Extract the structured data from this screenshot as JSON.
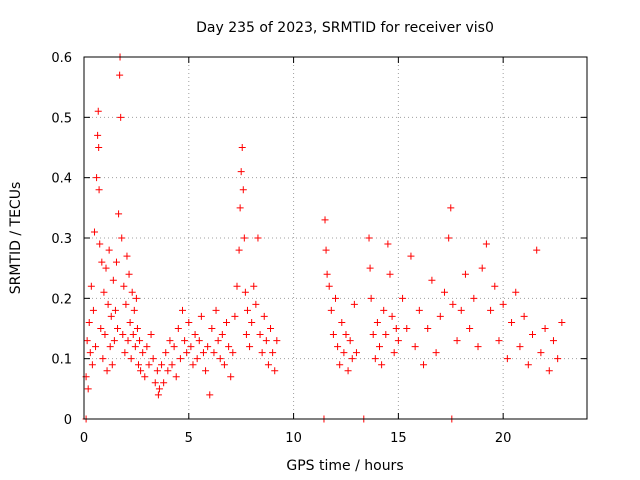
{
  "chart_data": {
    "type": "scatter",
    "title": "Day 235 of 2023, SRMTID for receiver vis0",
    "xlabel": "GPS time / hours",
    "ylabel": "SRMTID / TECUs",
    "xlim": [
      0,
      24
    ],
    "ylim": [
      0,
      0.6
    ],
    "x_ticks": [
      0,
      5,
      10,
      15,
      20
    ],
    "y_ticks": [
      0,
      0.1,
      0.2,
      0.3,
      0.4,
      0.5,
      0.6
    ],
    "x_tick_labels": [
      "0",
      "5",
      "10",
      "15",
      "20"
    ],
    "y_tick_labels": [
      "0",
      "0.1",
      "0.2",
      "0.3",
      "0.4",
      "0.5",
      "0.6"
    ],
    "grid": true,
    "marker": "+",
    "series": [
      {
        "name": "SRMTID",
        "color": "#ff0000",
        "points": [
          [
            0.1,
            0.07
          ],
          [
            0.15,
            0.13
          ],
          [
            0.2,
            0.05
          ],
          [
            0.25,
            0.16
          ],
          [
            0.3,
            0.11
          ],
          [
            0.35,
            0.22
          ],
          [
            0.4,
            0.09
          ],
          [
            0.45,
            0.18
          ],
          [
            0.5,
            0.31
          ],
          [
            0.55,
            0.12
          ],
          [
            0.6,
            0.4
          ],
          [
            0.65,
            0.47
          ],
          [
            0.68,
            0.51
          ],
          [
            0.7,
            0.45
          ],
          [
            0.72,
            0.38
          ],
          [
            0.75,
            0.29
          ],
          [
            0.8,
            0.15
          ],
          [
            0.85,
            0.26
          ],
          [
            0.9,
            0.1
          ],
          [
            0.95,
            0.21
          ],
          [
            1.0,
            0.14
          ],
          [
            1.05,
            0.25
          ],
          [
            1.1,
            0.08
          ],
          [
            1.15,
            0.19
          ],
          [
            1.2,
            0.28
          ],
          [
            1.25,
            0.12
          ],
          [
            1.3,
            0.17
          ],
          [
            1.35,
            0.09
          ],
          [
            1.4,
            0.23
          ],
          [
            1.45,
            0.13
          ],
          [
            1.5,
            0.18
          ],
          [
            1.55,
            0.26
          ],
          [
            1.6,
            0.15
          ],
          [
            1.65,
            0.34
          ],
          [
            1.7,
            0.57
          ],
          [
            1.72,
            0.6
          ],
          [
            1.75,
            0.5
          ],
          [
            1.8,
            0.3
          ],
          [
            1.85,
            0.14
          ],
          [
            1.9,
            0.22
          ],
          [
            1.95,
            0.11
          ],
          [
            2.0,
            0.19
          ],
          [
            2.05,
            0.27
          ],
          [
            2.1,
            0.13
          ],
          [
            2.15,
            0.24
          ],
          [
            2.2,
            0.16
          ],
          [
            2.25,
            0.1
          ],
          [
            2.3,
            0.21
          ],
          [
            2.35,
            0.14
          ],
          [
            2.4,
            0.18
          ],
          [
            2.45,
            0.12
          ],
          [
            2.5,
            0.2
          ],
          [
            2.55,
            0.15
          ],
          [
            2.6,
            0.09
          ],
          [
            2.65,
            0.13
          ],
          [
            2.7,
            0.08
          ],
          [
            2.8,
            0.11
          ],
          [
            2.9,
            0.07
          ],
          [
            3.0,
            0.12
          ],
          [
            3.1,
            0.09
          ],
          [
            3.2,
            0.14
          ],
          [
            3.3,
            0.1
          ],
          [
            3.4,
            0.06
          ],
          [
            3.5,
            0.08
          ],
          [
            3.55,
            0.04
          ],
          [
            3.6,
            0.05
          ],
          [
            3.7,
            0.09
          ],
          [
            3.8,
            0.06
          ],
          [
            3.9,
            0.11
          ],
          [
            4.0,
            0.08
          ],
          [
            4.1,
            0.13
          ],
          [
            4.2,
            0.09
          ],
          [
            4.3,
            0.12
          ],
          [
            4.4,
            0.07
          ],
          [
            4.5,
            0.15
          ],
          [
            4.6,
            0.1
          ],
          [
            4.7,
            0.18
          ],
          [
            4.8,
            0.13
          ],
          [
            4.9,
            0.11
          ],
          [
            5.0,
            0.16
          ],
          [
            5.1,
            0.12
          ],
          [
            5.2,
            0.09
          ],
          [
            5.3,
            0.14
          ],
          [
            5.4,
            0.1
          ],
          [
            5.5,
            0.13
          ],
          [
            5.6,
            0.17
          ],
          [
            5.7,
            0.11
          ],
          [
            5.8,
            0.08
          ],
          [
            5.9,
            0.12
          ],
          [
            6.0,
            0.04
          ],
          [
            6.1,
            0.15
          ],
          [
            6.2,
            0.11
          ],
          [
            6.3,
            0.18
          ],
          [
            6.4,
            0.13
          ],
          [
            6.5,
            0.1
          ],
          [
            6.6,
            0.14
          ],
          [
            6.7,
            0.09
          ],
          [
            6.8,
            0.16
          ],
          [
            6.9,
            0.12
          ],
          [
            7.0,
            0.07
          ],
          [
            7.1,
            0.11
          ],
          [
            7.2,
            0.17
          ],
          [
            7.3,
            0.22
          ],
          [
            7.4,
            0.28
          ],
          [
            7.45,
            0.35
          ],
          [
            7.5,
            0.41
          ],
          [
            7.55,
            0.45
          ],
          [
            7.6,
            0.38
          ],
          [
            7.65,
            0.3
          ],
          [
            7.7,
            0.21
          ],
          [
            7.75,
            0.14
          ],
          [
            7.8,
            0.18
          ],
          [
            7.9,
            0.12
          ],
          [
            8.0,
            0.16
          ],
          [
            8.1,
            0.22
          ],
          [
            8.2,
            0.19
          ],
          [
            8.3,
            0.3
          ],
          [
            8.4,
            0.14
          ],
          [
            8.5,
            0.11
          ],
          [
            8.6,
            0.17
          ],
          [
            8.7,
            0.13
          ],
          [
            8.8,
            0.09
          ],
          [
            8.9,
            0.15
          ],
          [
            9.0,
            0.11
          ],
          [
            9.1,
            0.08
          ],
          [
            9.2,
            0.13
          ],
          [
            11.5,
            0.33
          ],
          [
            11.55,
            0.28
          ],
          [
            11.6,
            0.24
          ],
          [
            11.7,
            0.22
          ],
          [
            11.8,
            0.18
          ],
          [
            11.9,
            0.14
          ],
          [
            12.0,
            0.2
          ],
          [
            12.1,
            0.12
          ],
          [
            12.2,
            0.09
          ],
          [
            12.3,
            0.16
          ],
          [
            12.4,
            0.11
          ],
          [
            12.5,
            0.14
          ],
          [
            12.6,
            0.08
          ],
          [
            12.7,
            0.13
          ],
          [
            12.8,
            0.1
          ],
          [
            12.9,
            0.19
          ],
          [
            13.0,
            0.11
          ],
          [
            13.6,
            0.3
          ],
          [
            13.65,
            0.25
          ],
          [
            13.7,
            0.2
          ],
          [
            13.8,
            0.14
          ],
          [
            13.9,
            0.1
          ],
          [
            14.0,
            0.16
          ],
          [
            14.1,
            0.12
          ],
          [
            14.2,
            0.09
          ],
          [
            14.3,
            0.18
          ],
          [
            14.4,
            0.14
          ],
          [
            14.5,
            0.29
          ],
          [
            14.6,
            0.24
          ],
          [
            14.7,
            0.17
          ],
          [
            14.8,
            0.11
          ],
          [
            14.9,
            0.15
          ],
          [
            15.0,
            0.13
          ],
          [
            15.2,
            0.2
          ],
          [
            15.4,
            0.15
          ],
          [
            15.6,
            0.27
          ],
          [
            15.8,
            0.12
          ],
          [
            16.0,
            0.18
          ],
          [
            16.2,
            0.09
          ],
          [
            16.4,
            0.15
          ],
          [
            16.6,
            0.23
          ],
          [
            16.8,
            0.11
          ],
          [
            17.0,
            0.17
          ],
          [
            17.2,
            0.21
          ],
          [
            17.4,
            0.3
          ],
          [
            17.5,
            0.35
          ],
          [
            17.6,
            0.19
          ],
          [
            17.8,
            0.13
          ],
          [
            18.0,
            0.18
          ],
          [
            18.2,
            0.24
          ],
          [
            18.4,
            0.15
          ],
          [
            18.6,
            0.2
          ],
          [
            18.8,
            0.12
          ],
          [
            19.0,
            0.25
          ],
          [
            19.2,
            0.29
          ],
          [
            19.4,
            0.18
          ],
          [
            19.6,
            0.22
          ],
          [
            19.8,
            0.13
          ],
          [
            20.0,
            0.19
          ],
          [
            20.2,
            0.1
          ],
          [
            20.4,
            0.16
          ],
          [
            20.6,
            0.21
          ],
          [
            20.8,
            0.12
          ],
          [
            21.0,
            0.17
          ],
          [
            21.2,
            0.09
          ],
          [
            21.4,
            0.14
          ],
          [
            21.6,
            0.28
          ],
          [
            21.8,
            0.11
          ],
          [
            22.0,
            0.15
          ],
          [
            22.2,
            0.08
          ],
          [
            22.4,
            0.13
          ],
          [
            22.6,
            0.1
          ],
          [
            22.8,
            0.16
          ],
          [
            0.1,
            0.0
          ],
          [
            11.45,
            0.0
          ],
          [
            13.35,
            0.0
          ],
          [
            17.55,
            0.0
          ]
        ]
      }
    ]
  }
}
